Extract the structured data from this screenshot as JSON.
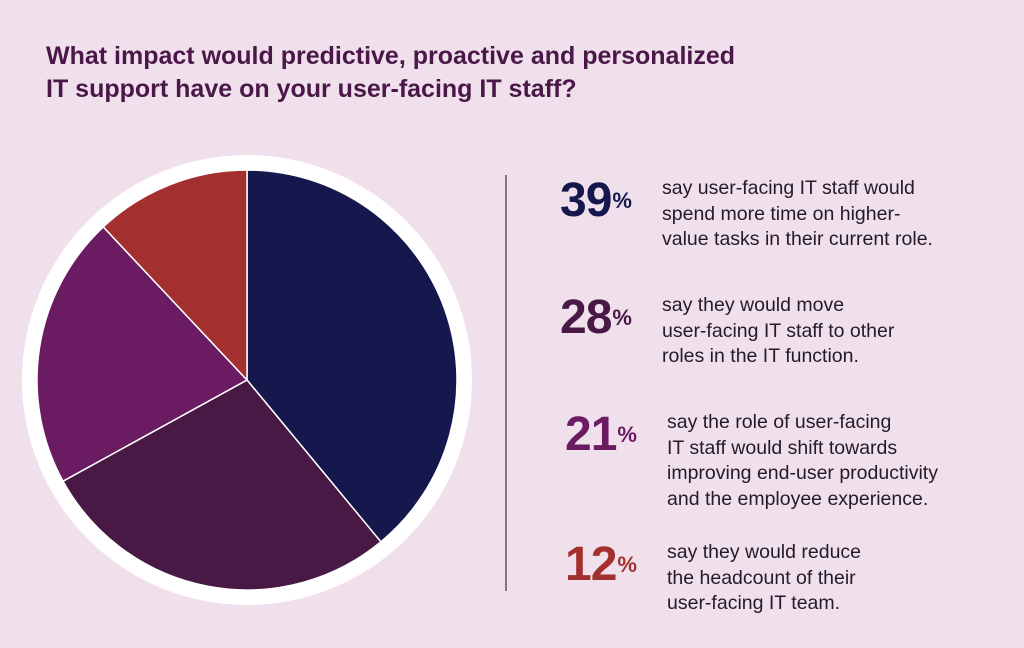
{
  "title": {
    "line1": "What impact would predictive, proactive and personalized",
    "line2": "IT support have on your user-facing IT staff?"
  },
  "chart_data": {
    "type": "pie",
    "title": "What impact would predictive, proactive and personalized IT support have on your user-facing IT staff?",
    "labels": [
      "Spend more time on higher-value tasks",
      "Move staff to other IT roles",
      "Shift towards end-user productivity",
      "Reduce headcount"
    ],
    "values": [
      39,
      28,
      21,
      12
    ],
    "colors": [
      "#15174d",
      "#471944",
      "#6a1b62",
      "#a3302f"
    ],
    "start_angle": "12 o'clock",
    "direction": "clockwise",
    "legend": "right"
  },
  "stats": [
    {
      "number": "39",
      "percent_sign": "%",
      "color": "#15174d",
      "lines": [
        "say user-facing IT staff would",
        "spend more time on higher-",
        "value tasks in their current role."
      ]
    },
    {
      "number": "28",
      "percent_sign": "%",
      "color": "#471944",
      "lines": [
        "say they would move",
        "user-facing IT staff to other",
        "roles in the IT function."
      ]
    },
    {
      "number": "21",
      "percent_sign": "%",
      "color": "#6a1b62",
      "lines": [
        "say the role of user-facing",
        "IT staff would shift towards",
        "improving end-user productivity",
        "and the employee experience."
      ]
    },
    {
      "number": "12",
      "percent_sign": "%",
      "color": "#a3302f",
      "lines": [
        "say they would reduce",
        "the headcount of their",
        "user-facing IT team."
      ]
    }
  ]
}
